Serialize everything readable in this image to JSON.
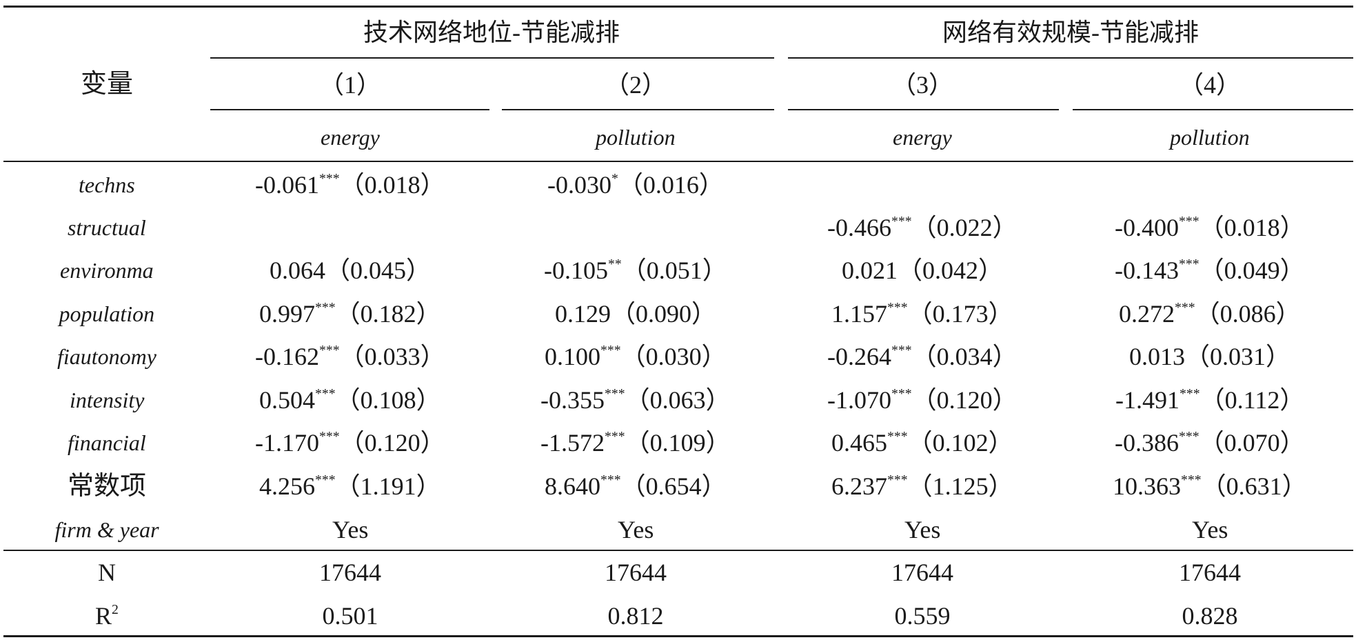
{
  "table": {
    "stub_header": "变量",
    "groups": [
      {
        "title": "技术网络地位-节能减排"
      },
      {
        "title": "网络有效规模-节能减排"
      }
    ],
    "model_numbers": [
      "（1）",
      "（2）",
      "（3）",
      "（4）"
    ],
    "dependent_vars": [
      "energy",
      "pollution",
      "energy",
      "pollution"
    ],
    "rows": [
      {
        "label": "techns",
        "cells": [
          {
            "coef": "-0.061",
            "stars": "***",
            "se": "（0.018）"
          },
          {
            "coef": "-0.030",
            "stars": "*",
            "se": "（0.016）"
          },
          {
            "coef": "",
            "stars": "",
            "se": ""
          },
          {
            "coef": "",
            "stars": "",
            "se": ""
          }
        ]
      },
      {
        "label": "structual",
        "cells": [
          {
            "coef": "",
            "stars": "",
            "se": ""
          },
          {
            "coef": "",
            "stars": "",
            "se": ""
          },
          {
            "coef": "-0.466",
            "stars": "***",
            "se": "（0.022）"
          },
          {
            "coef": "-0.400",
            "stars": "***",
            "se": "（0.018）"
          }
        ]
      },
      {
        "label": "environma",
        "cells": [
          {
            "coef": "0.064",
            "stars": "",
            "se": "（0.045）"
          },
          {
            "coef": "-0.105",
            "stars": "**",
            "se": "（0.051）"
          },
          {
            "coef": "0.021",
            "stars": "",
            "se": "（0.042）"
          },
          {
            "coef": "-0.143",
            "stars": "***",
            "se": "（0.049）"
          }
        ]
      },
      {
        "label": "population",
        "cells": [
          {
            "coef": "0.997",
            "stars": "***",
            "se": "（0.182）"
          },
          {
            "coef": "0.129",
            "stars": "",
            "se": "（0.090）"
          },
          {
            "coef": "1.157",
            "stars": "***",
            "se": "（0.173）"
          },
          {
            "coef": "0.272",
            "stars": "***",
            "se": "（0.086）"
          }
        ]
      },
      {
        "label": "fiautonomy",
        "cells": [
          {
            "coef": "-0.162",
            "stars": "***",
            "se": "（0.033）"
          },
          {
            "coef": "0.100",
            "stars": "***",
            "se": "（0.030）"
          },
          {
            "coef": "-0.264",
            "stars": "***",
            "se": "（0.034）"
          },
          {
            "coef": "0.013",
            "stars": "",
            "se": "（0.031）"
          }
        ]
      },
      {
        "label": "intensity",
        "cells": [
          {
            "coef": "0.504",
            "stars": "***",
            "se": "（0.108）"
          },
          {
            "coef": "-0.355",
            "stars": "***",
            "se": "（0.063）"
          },
          {
            "coef": "-1.070",
            "stars": "***",
            "se": "（0.120）"
          },
          {
            "coef": "-1.491",
            "stars": "***",
            "se": "（0.112）"
          }
        ]
      },
      {
        "label": "financial",
        "cells": [
          {
            "coef": "-1.170",
            "stars": "***",
            "se": "（0.120）"
          },
          {
            "coef": "-1.572",
            "stars": "***",
            "se": "（0.109）"
          },
          {
            "coef": "0.465",
            "stars": "***",
            "se": "（0.102）"
          },
          {
            "coef": "-0.386",
            "stars": "***",
            "se": "（0.070）"
          }
        ]
      },
      {
        "label": "常数项",
        "cells": [
          {
            "coef": "4.256",
            "stars": "***",
            "se": "（1.191）"
          },
          {
            "coef": "8.640",
            "stars": "***",
            "se": "（0.654）"
          },
          {
            "coef": "6.237",
            "stars": "***",
            "se": "（1.125）"
          },
          {
            "coef": "10.363",
            "stars": "***",
            "se": "（0.631）"
          }
        ]
      },
      {
        "label": "firm & year",
        "cells": [
          {
            "coef": "Yes",
            "stars": "",
            "se": ""
          },
          {
            "coef": "Yes",
            "stars": "",
            "se": ""
          },
          {
            "coef": "Yes",
            "stars": "",
            "se": ""
          },
          {
            "coef": "Yes",
            "stars": "",
            "se": ""
          }
        ]
      }
    ],
    "stats": [
      {
        "label": "N",
        "values": [
          "17644",
          "17644",
          "17644",
          "17644"
        ]
      },
      {
        "label": "R",
        "label_sup": "2",
        "values": [
          "0.501",
          "0.812",
          "0.559",
          "0.828"
        ]
      }
    ]
  }
}
